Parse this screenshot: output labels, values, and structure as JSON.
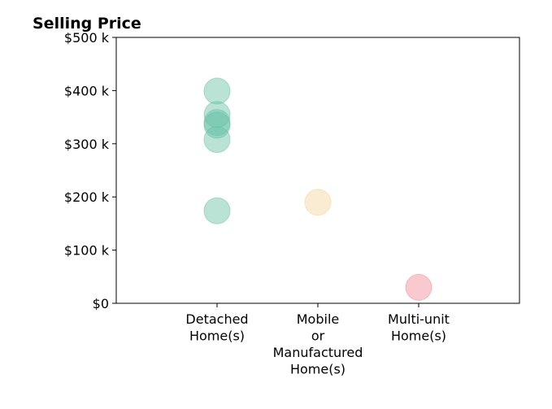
{
  "chart_data": {
    "type": "scatter",
    "title": "Selling Price",
    "categories": [
      "Detached\nHome(s)",
      "Mobile\nor\nManufactured\nHome(s)",
      "Multi-unit\nHome(s)"
    ],
    "values": [
      [
        399,
        355,
        340,
        335,
        308,
        174
      ],
      [
        190
      ],
      [
        30
      ]
    ],
    "colors": [
      "#66c2a5",
      "#f2d49b",
      "#f08a96"
    ],
    "ylim": [
      0,
      500
    ],
    "yticks": [
      {
        "value": 0,
        "label": "$0"
      },
      {
        "value": 100,
        "label": "$100 k"
      },
      {
        "value": 200,
        "label": "$200 k"
      },
      {
        "value": 300,
        "label": "$300 k"
      },
      {
        "value": 400,
        "label": "$400 k"
      },
      {
        "value": 500,
        "label": "$500 k"
      }
    ],
    "grid": false
  }
}
